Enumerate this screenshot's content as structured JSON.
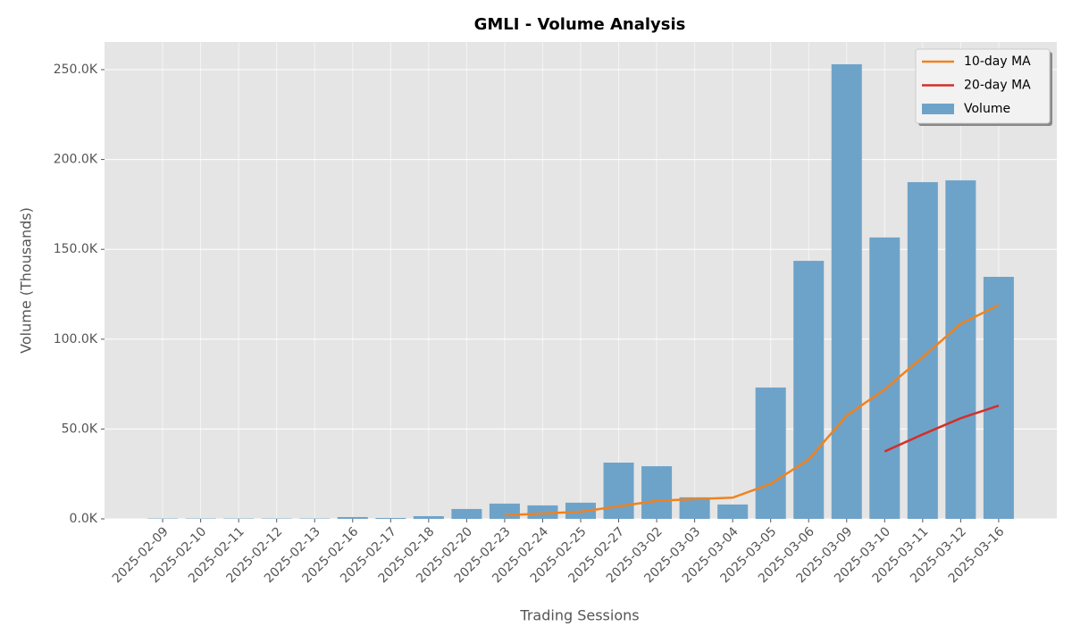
{
  "chart_data": {
    "type": "bar",
    "title": "GMLI - Volume Analysis",
    "x_label": "Trading Sessions",
    "y_label": "Volume (Thousands)",
    "categories": [
      "2025-02-09",
      "2025-02-10",
      "2025-02-11",
      "2025-02-12",
      "2025-02-13",
      "2025-02-16",
      "2025-02-17",
      "2025-02-18",
      "2025-02-20",
      "2025-02-23",
      "2025-02-24",
      "2025-02-25",
      "2025-02-27",
      "2025-03-02",
      "2025-03-03",
      "2025-03-04",
      "2025-03-05",
      "2025-03-06",
      "2025-03-09",
      "2025-03-10",
      "2025-03-11",
      "2025-03-12",
      "2025-03-16"
    ],
    "series": [
      {
        "name": "10-day MA",
        "type": "line",
        "color": "#f0821e",
        "values": [
          null,
          null,
          null,
          null,
          null,
          null,
          null,
          null,
          null,
          2000,
          3000,
          4000,
          7000,
          10000,
          11000,
          11800,
          19500,
          33000,
          57500,
          72000,
          90000,
          108500,
          119000
        ]
      },
      {
        "name": "20-day MA",
        "type": "line",
        "color": "#d1302b",
        "values": [
          null,
          null,
          null,
          null,
          null,
          null,
          null,
          null,
          null,
          null,
          null,
          null,
          null,
          null,
          null,
          null,
          null,
          null,
          null,
          37500,
          47000,
          56000,
          63000
        ]
      },
      {
        "name": "Volume",
        "type": "bar",
        "color": "#6ea3c9",
        "values": [
          200,
          200,
          200,
          200,
          200,
          1000,
          500,
          1500,
          5500,
          8500,
          7500,
          9000,
          31300,
          29300,
          12000,
          8000,
          73100,
          143600,
          253000,
          156600,
          187400,
          188400,
          134700
        ]
      }
    ],
    "ylim": [
      0,
      265400
    ],
    "yticks": [
      {
        "value": 0,
        "label": "0.0K"
      },
      {
        "value": 50000,
        "label": "50.0K"
      },
      {
        "value": 100000,
        "label": "100.0K"
      },
      {
        "value": 150000,
        "label": "150.0K"
      },
      {
        "value": 200000,
        "label": "200.0K"
      },
      {
        "value": 250000,
        "label": "250.0K"
      }
    ],
    "grid": true,
    "legend": "upper-right"
  }
}
